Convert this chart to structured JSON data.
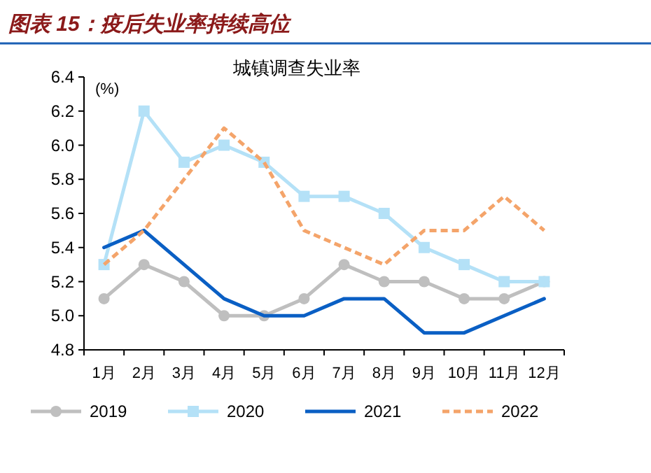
{
  "chart_data": {
    "type": "line",
    "title": "图表 15：疫后失业率持续高位",
    "subtitle": "城镇调查失业率",
    "ylabel": "(%)",
    "categories": [
      "1月",
      "2月",
      "3月",
      "4月",
      "5月",
      "6月",
      "7月",
      "8月",
      "9月",
      "10月",
      "11月",
      "12月"
    ],
    "series": [
      {
        "name": "2019",
        "color": "#bfbfbf",
        "marker": "circle",
        "line_style": "solid",
        "values": [
          5.1,
          5.3,
          5.2,
          5.0,
          5.0,
          5.1,
          5.3,
          5.2,
          5.2,
          5.1,
          5.1,
          5.2
        ]
      },
      {
        "name": "2020",
        "color": "#b4e1f7",
        "marker": "square",
        "line_style": "solid",
        "values": [
          5.3,
          6.2,
          5.9,
          6.0,
          5.9,
          5.7,
          5.7,
          5.6,
          5.4,
          5.3,
          5.2,
          5.2
        ]
      },
      {
        "name": "2021",
        "color": "#0a5fc4",
        "marker": "none",
        "line_style": "solid",
        "values": [
          5.4,
          5.5,
          5.3,
          5.1,
          5.0,
          5.0,
          5.1,
          5.1,
          4.9,
          4.9,
          5.0,
          5.1
        ]
      },
      {
        "name": "2022",
        "color": "#f4a46a",
        "marker": "none",
        "line_style": "dashed",
        "values": [
          5.3,
          5.5,
          5.8,
          6.1,
          5.9,
          5.5,
          5.4,
          5.3,
          5.5,
          5.5,
          5.7,
          5.5
        ]
      }
    ],
    "ylim": [
      4.8,
      6.4
    ],
    "yticks": [
      4.8,
      {
        "value": 5.0,
        "label": "5.0"
      },
      5.2,
      5.4,
      5.6,
      5.8,
      {
        "value": 6.0,
        "label": "6.0"
      },
      6.2,
      6.4
    ],
    "grid": false,
    "legend": "bottom"
  }
}
